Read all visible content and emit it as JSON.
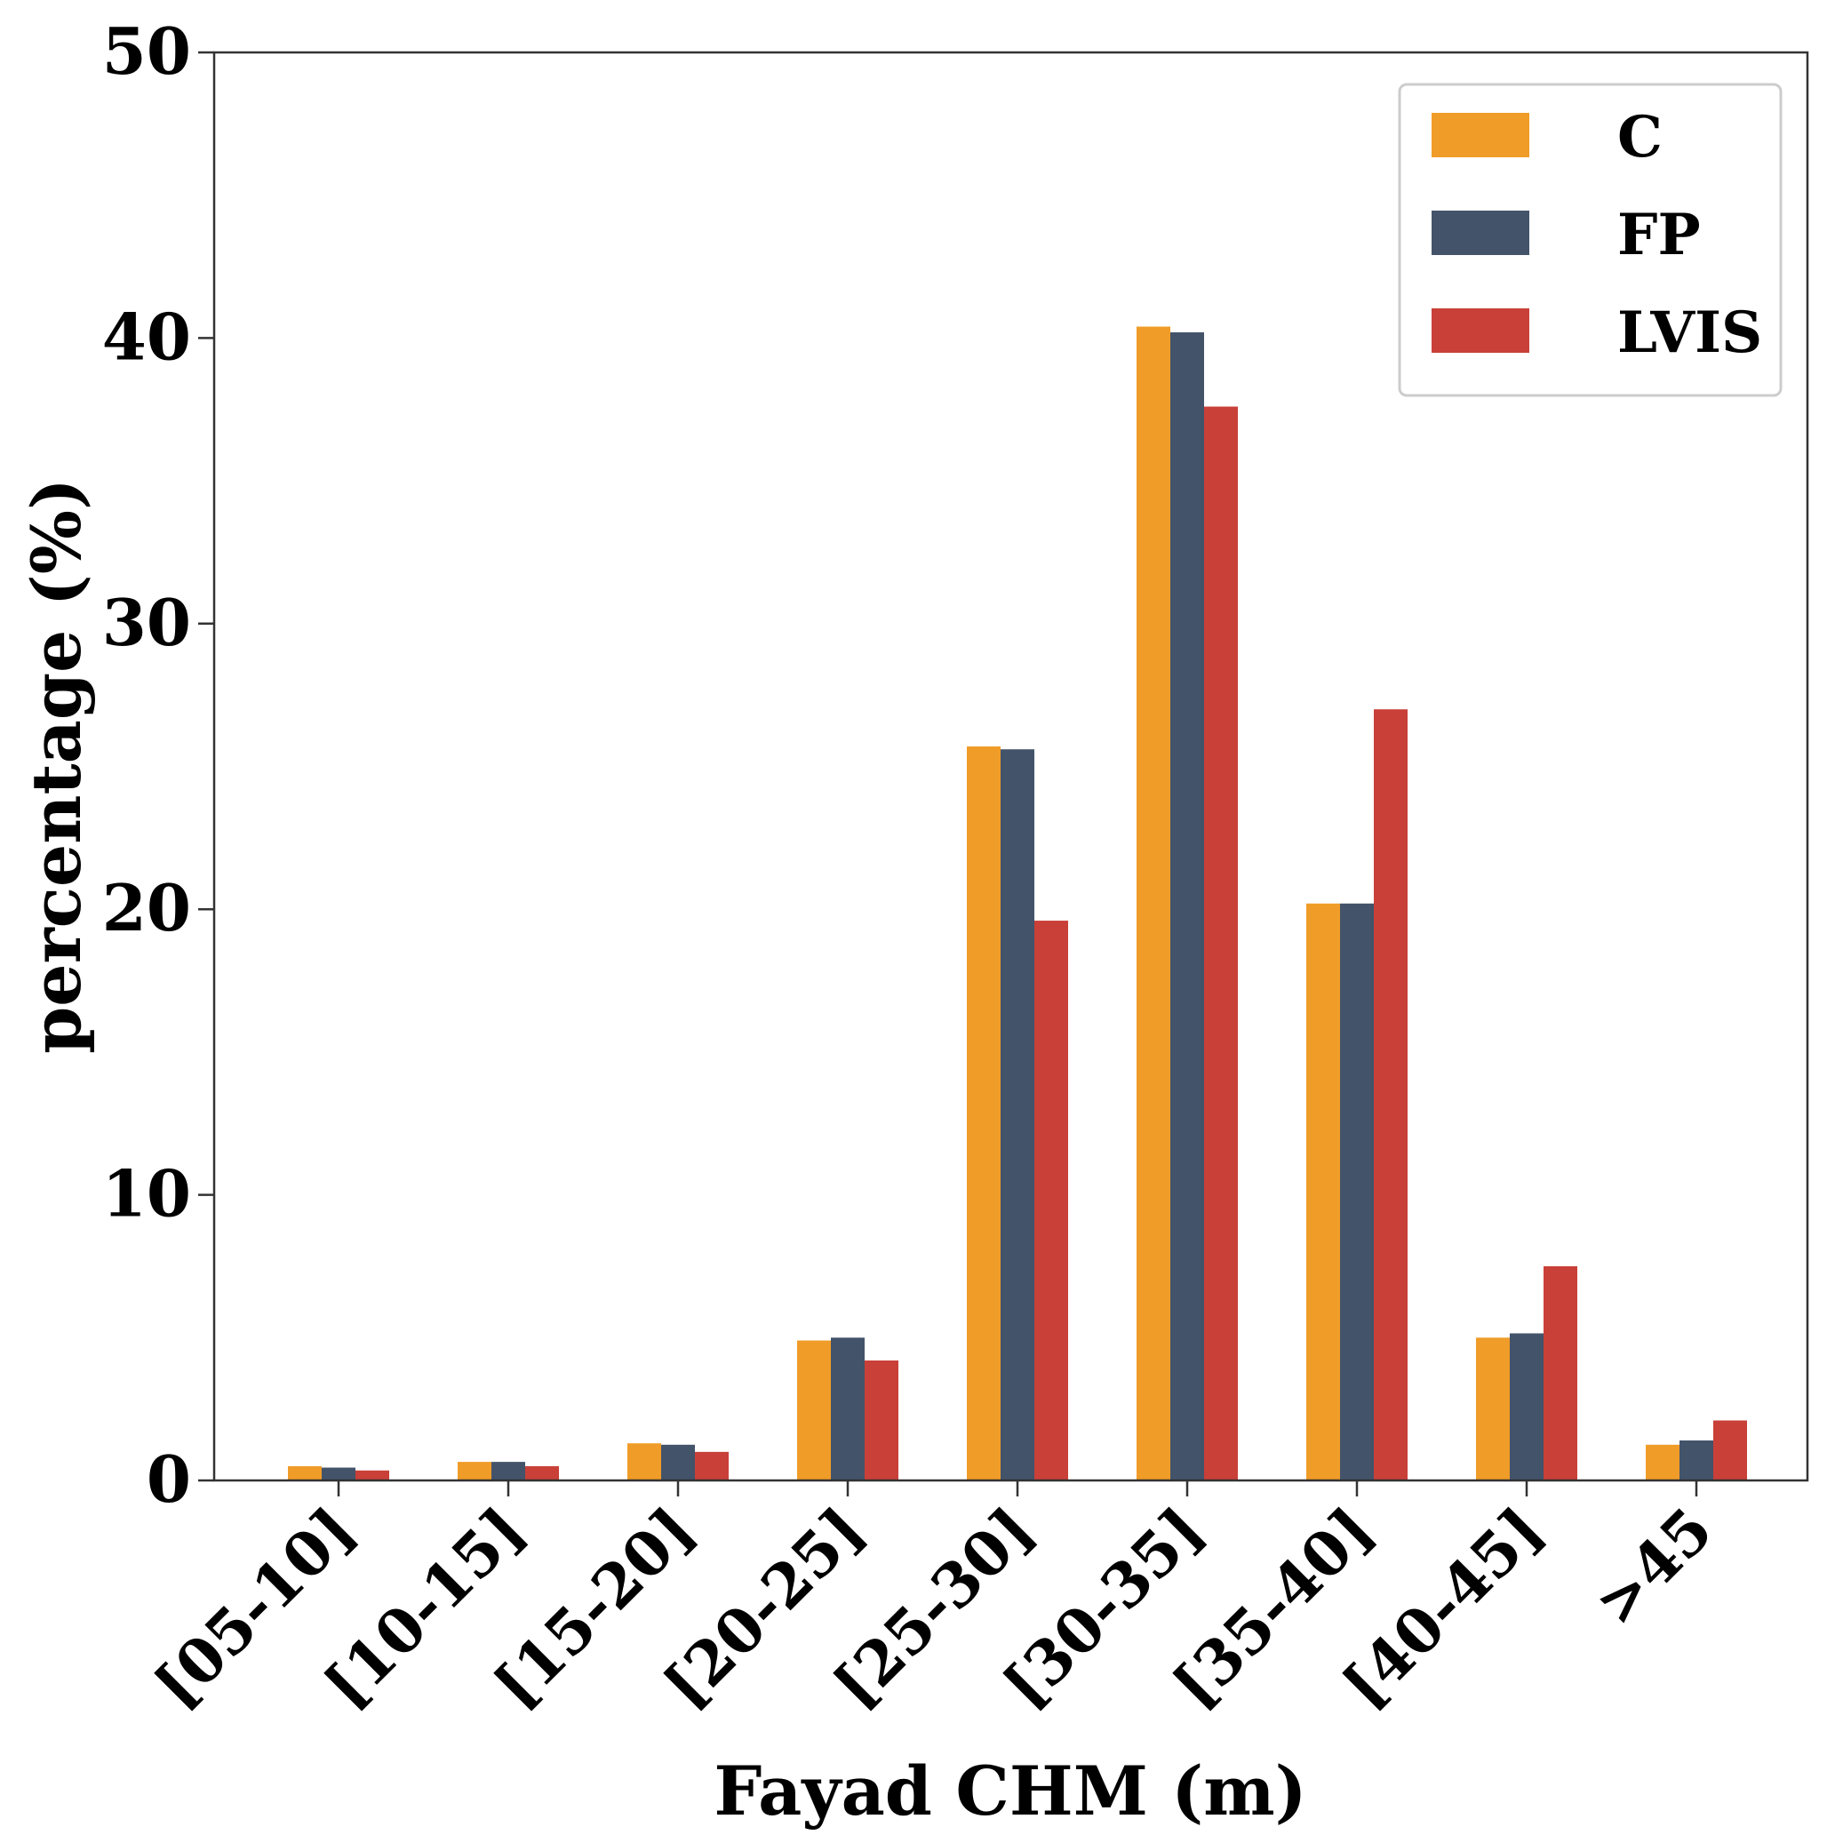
{
  "chart_data": {
    "type": "bar",
    "title": "",
    "xlabel": "Fayad CHM (m)",
    "ylabel": "percentage (%)",
    "ylim": [
      0,
      50
    ],
    "yticks": [
      "0",
      "10",
      "20",
      "30",
      "40",
      "50"
    ],
    "categories": [
      "[05-10]",
      "[10-15]",
      "[15-20]",
      "[20-25]",
      "[25-30]",
      "[30-35]",
      "[35-40]",
      "[40-45]",
      ">45"
    ],
    "series": [
      {
        "name": "C",
        "color": "#f09c28",
        "values": [
          0.5,
          0.65,
          1.3,
          4.9,
          25.7,
          40.4,
          20.2,
          5.0,
          1.25
        ]
      },
      {
        "name": "FP",
        "color": "#43536a",
        "values": [
          0.45,
          0.65,
          1.25,
          5.0,
          25.6,
          40.2,
          20.2,
          5.15,
          1.4
        ]
      },
      {
        "name": "LVIS",
        "color": "#c94038",
        "values": [
          0.35,
          0.5,
          1.0,
          4.2,
          19.6,
          37.6,
          27.0,
          7.5,
          2.1
        ]
      }
    ],
    "legend_position": "top-right",
    "grid": false
  }
}
